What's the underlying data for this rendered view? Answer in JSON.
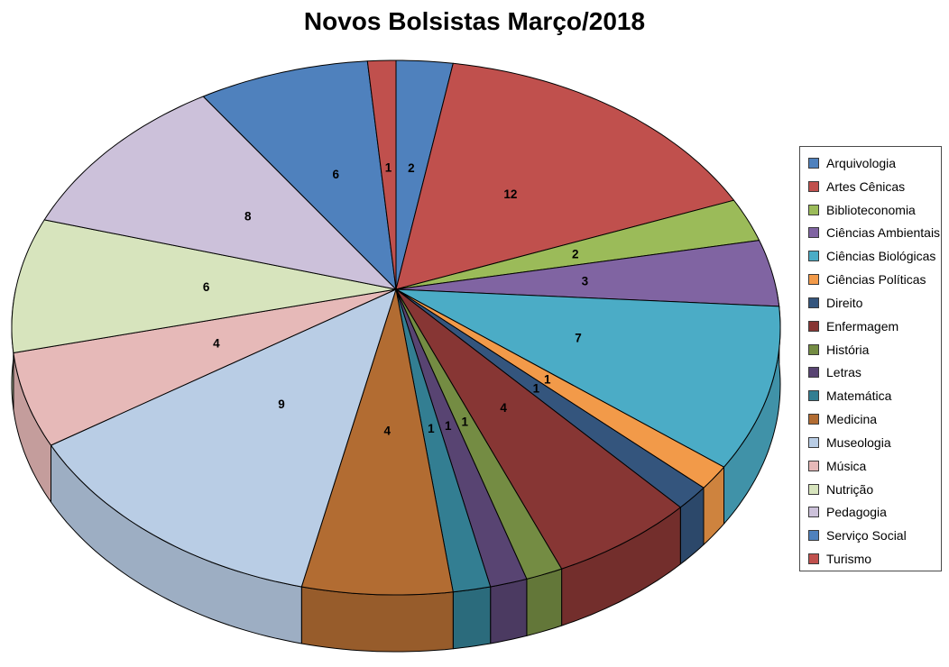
{
  "page": {
    "background": "#FFFFFF"
  },
  "chart_data": {
    "type": "pie",
    "style": "3d-perspective",
    "title": "Novos Bolsistas Março/2018",
    "data_labels": "value",
    "legend_position": "right",
    "categories": [
      "Arquivologia",
      "Artes Cênicas",
      "Biblioteconomia",
      "Ciências Ambientais",
      "Ciências Biológicas",
      "Ciências Políticas",
      "Direito",
      "Enfermagem",
      "História",
      "Letras",
      "Matemática",
      "Medicina",
      "Museologia",
      "Música",
      "Nutrição",
      "Pedagogia",
      "Serviço Social",
      "Turismo"
    ],
    "values": [
      2,
      12,
      2,
      3,
      7,
      1,
      1,
      4,
      1,
      1,
      1,
      4,
      9,
      4,
      6,
      8,
      6,
      1
    ],
    "colors": [
      "#4F81BD",
      "#C0504D",
      "#9BBB59",
      "#8064A2",
      "#4BACC6",
      "#F29A49",
      "#34557D",
      "#873634",
      "#748C43",
      "#584472",
      "#337E92",
      "#B26C32",
      "#B9CDE5",
      "#E6B9B8",
      "#D7E4BD",
      "#CCC1DA",
      "#4F81BD",
      "#C0504D"
    ],
    "label_color": "#000000",
    "outline_color": "#000000"
  }
}
